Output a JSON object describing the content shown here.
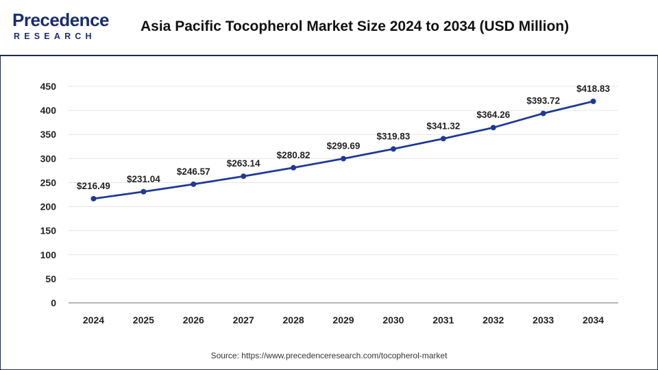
{
  "header": {
    "logo_top": "Precedence",
    "logo_bottom": "RESEARCH",
    "title": "Asia Pacific Tocopherol Market Size 2024 to 2034 (USD Million)"
  },
  "footer": {
    "source": "Source: https://www.precedenceresearch.com/tocopherol-market"
  },
  "colors": {
    "line": "#1f3a93",
    "brand": "#1a2d6b",
    "grid": "#e6e6e6"
  },
  "chart_data": {
    "type": "line",
    "title": "Asia Pacific Tocopherol Market Size 2024 to 2034 (USD Million)",
    "xlabel": "",
    "ylabel": "",
    "categories": [
      "2024",
      "2025",
      "2026",
      "2027",
      "2028",
      "2029",
      "2030",
      "2031",
      "2032",
      "2033",
      "2034"
    ],
    "series": [
      {
        "values": [
          216.49,
          231.04,
          246.57,
          263.14,
          280.82,
          299.69,
          319.83,
          341.32,
          364.26,
          393.72,
          418.83
        ],
        "labels": [
          "$216.49",
          "$231.04",
          "$246.57",
          "$263.14",
          "$280.82",
          "$299.69",
          "$319.83",
          "$341.32",
          "$364.26",
          "$393.72",
          "$418.83"
        ]
      }
    ],
    "ylim": [
      0,
      450
    ],
    "yticks": [
      "0",
      "50",
      "100",
      "150",
      "200",
      "250",
      "300",
      "350",
      "400",
      "450"
    ],
    "grid": true,
    "legend": "none"
  }
}
